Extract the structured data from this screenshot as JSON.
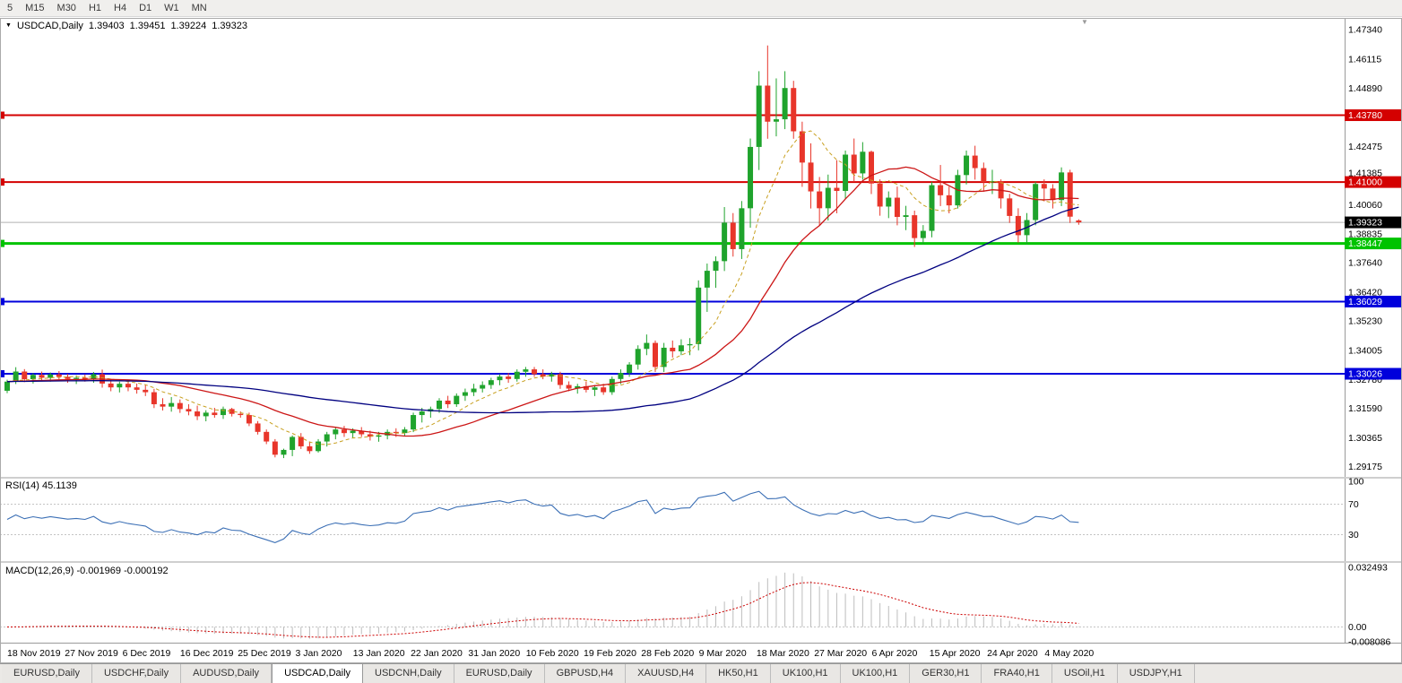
{
  "icons": {
    "chart_menu": "▼",
    "shift_marker": "▼"
  },
  "toolbar": {
    "timeframes": [
      "5",
      "M15",
      "M30",
      "H1",
      "H4",
      "D1",
      "W1",
      "MN"
    ]
  },
  "chart_header": {
    "symbol": "USDCAD,Daily",
    "open": "1.39403",
    "high": "1.39451",
    "low": "1.39224",
    "close": "1.39323"
  },
  "chart_data": {
    "type": "candlestick",
    "symbol": "USDCAD",
    "timeframe": "Daily",
    "price_axis": {
      "min": 1.2874,
      "max": 1.47825,
      "ticks": [
        "1.47340",
        "1.46115",
        "1.44890",
        "1.42475",
        "1.41385",
        "1.40060",
        "1.38835",
        "1.37640",
        "1.36420",
        "1.35230",
        "1.34005",
        "1.32780",
        "1.31590",
        "1.30365",
        "1.29175"
      ]
    },
    "current_price": {
      "value": 1.39323,
      "label": "1.39323",
      "badge_color": "#000000"
    },
    "levels": [
      {
        "price": 1.4378,
        "label": "1.43780",
        "color": "#d40000",
        "width": 2
      },
      {
        "price": 1.41,
        "label": "1.41000",
        "color": "#d40000",
        "width": 2
      },
      {
        "price": 1.38447,
        "label": "1.38447",
        "color": "#00c300",
        "width": 3
      },
      {
        "price": 1.36029,
        "label": "1.36029",
        "color": "#0000dc",
        "width": 2
      },
      {
        "price": 1.33026,
        "label": "1.33026",
        "color": "#0000dc",
        "width": 2
      }
    ],
    "colors": {
      "bull": "#1fa32c",
      "bear": "#e8352a",
      "ma_fast": "#c8a020",
      "ma_mid": "#cc1616",
      "ma_slow": "#000080",
      "rsi": "#3b6fb5",
      "macd_hist": "#bdbdbd",
      "macd_signal": "#cc0000",
      "bid_line": "#b0b0b0"
    },
    "moving_averages": [
      {
        "period": 8,
        "style": "dashed",
        "color_key": "ma_fast"
      },
      {
        "period": 20,
        "style": "solid",
        "color_key": "ma_mid"
      },
      {
        "period": 50,
        "style": "solid",
        "color_key": "ma_slow"
      }
    ],
    "candles_ohlc": [
      [
        1.3232,
        1.3278,
        1.3222,
        1.327
      ],
      [
        1.327,
        1.333,
        1.326,
        1.3312
      ],
      [
        1.3312,
        1.3322,
        1.3268,
        1.328
      ],
      [
        1.328,
        1.3305,
        1.3262,
        1.3298
      ],
      [
        1.3298,
        1.3312,
        1.3275,
        1.3286
      ],
      [
        1.3286,
        1.3308,
        1.327,
        1.33
      ],
      [
        1.33,
        1.3314,
        1.328,
        1.329
      ],
      [
        1.329,
        1.3302,
        1.3265,
        1.3281
      ],
      [
        1.3281,
        1.3296,
        1.326,
        1.3286
      ],
      [
        1.3286,
        1.33,
        1.327,
        1.3279
      ],
      [
        1.3279,
        1.331,
        1.3265,
        1.3301
      ],
      [
        1.3301,
        1.332,
        1.3245,
        1.3262
      ],
      [
        1.3262,
        1.3281,
        1.323,
        1.3246
      ],
      [
        1.3246,
        1.327,
        1.3225,
        1.3261
      ],
      [
        1.3261,
        1.3276,
        1.323,
        1.3246
      ],
      [
        1.3246,
        1.3262,
        1.322,
        1.3236
      ],
      [
        1.3236,
        1.3256,
        1.321,
        1.3226
      ],
      [
        1.3226,
        1.324,
        1.316,
        1.3176
      ],
      [
        1.3176,
        1.3201,
        1.315,
        1.3166
      ],
      [
        1.3166,
        1.3206,
        1.3145,
        1.3181
      ],
      [
        1.3181,
        1.3196,
        1.314,
        1.3156
      ],
      [
        1.3156,
        1.3176,
        1.313,
        1.3146
      ],
      [
        1.3146,
        1.317,
        1.311,
        1.3126
      ],
      [
        1.3126,
        1.3151,
        1.3105,
        1.3141
      ],
      [
        1.3141,
        1.3161,
        1.312,
        1.3131
      ],
      [
        1.3131,
        1.3166,
        1.3115,
        1.3156
      ],
      [
        1.3156,
        1.3161,
        1.3125,
        1.3136
      ],
      [
        1.3136,
        1.3146,
        1.312,
        1.3131
      ],
      [
        1.3131,
        1.3141,
        1.3085,
        1.3096
      ],
      [
        1.3096,
        1.3106,
        1.305,
        1.3061
      ],
      [
        1.3061,
        1.3071,
        1.301,
        1.3021
      ],
      [
        1.3021,
        1.3031,
        1.2955,
        1.2966
      ],
      [
        1.2966,
        1.2991,
        1.2952,
        1.2986
      ],
      [
        1.2986,
        1.3046,
        1.296,
        1.304
      ],
      [
        1.304,
        1.3056,
        1.299,
        1.3001
      ],
      [
        1.3001,
        1.3021,
        1.297,
        1.2981
      ],
      [
        1.2981,
        1.3031,
        1.2975,
        1.3021
      ],
      [
        1.3021,
        1.3061,
        1.3,
        1.3051
      ],
      [
        1.3051,
        1.3081,
        1.303,
        1.3071
      ],
      [
        1.3071,
        1.3086,
        1.304,
        1.3056
      ],
      [
        1.3056,
        1.3076,
        1.3035,
        1.3066
      ],
      [
        1.3066,
        1.3081,
        1.304,
        1.3051
      ],
      [
        1.3051,
        1.3066,
        1.3025,
        1.3041
      ],
      [
        1.3041,
        1.3061,
        1.302,
        1.3046
      ],
      [
        1.3046,
        1.3071,
        1.303,
        1.3061
      ],
      [
        1.3061,
        1.3076,
        1.304,
        1.3056
      ],
      [
        1.3056,
        1.3081,
        1.3045,
        1.3071
      ],
      [
        1.3071,
        1.3141,
        1.306,
        1.3131
      ],
      [
        1.3131,
        1.3161,
        1.31,
        1.3146
      ],
      [
        1.3146,
        1.3166,
        1.312,
        1.3156
      ],
      [
        1.3156,
        1.3201,
        1.314,
        1.3191
      ],
      [
        1.3191,
        1.3211,
        1.316,
        1.3176
      ],
      [
        1.3176,
        1.3221,
        1.3165,
        1.3211
      ],
      [
        1.3211,
        1.3241,
        1.319,
        1.3226
      ],
      [
        1.3226,
        1.3261,
        1.321,
        1.3241
      ],
      [
        1.3241,
        1.3271,
        1.3225,
        1.3256
      ],
      [
        1.3256,
        1.3286,
        1.324,
        1.3276
      ],
      [
        1.3276,
        1.3301,
        1.3255,
        1.3291
      ],
      [
        1.3291,
        1.3306,
        1.3265,
        1.3281
      ],
      [
        1.3281,
        1.3321,
        1.327,
        1.3311
      ],
      [
        1.3311,
        1.3331,
        1.329,
        1.3321
      ],
      [
        1.3321,
        1.3331,
        1.329,
        1.3301
      ],
      [
        1.3301,
        1.3321,
        1.328,
        1.3291
      ],
      [
        1.3291,
        1.3311,
        1.327,
        1.3301
      ],
      [
        1.3301,
        1.3311,
        1.324,
        1.3256
      ],
      [
        1.3256,
        1.3271,
        1.323,
        1.3241
      ],
      [
        1.3241,
        1.3261,
        1.322,
        1.3251
      ],
      [
        1.3251,
        1.3271,
        1.3225,
        1.3236
      ],
      [
        1.3236,
        1.3256,
        1.321,
        1.3246
      ],
      [
        1.3246,
        1.3261,
        1.3215,
        1.3226
      ],
      [
        1.3226,
        1.3291,
        1.3215,
        1.3281
      ],
      [
        1.3281,
        1.3321,
        1.326,
        1.3306
      ],
      [
        1.3306,
        1.3351,
        1.329,
        1.3341
      ],
      [
        1.3341,
        1.3421,
        1.332,
        1.3406
      ],
      [
        1.3406,
        1.3466,
        1.338,
        1.3431
      ],
      [
        1.3431,
        1.3441,
        1.331,
        1.3331
      ],
      [
        1.3331,
        1.3431,
        1.331,
        1.3411
      ],
      [
        1.3411,
        1.3441,
        1.337,
        1.3396
      ],
      [
        1.3396,
        1.3446,
        1.338,
        1.3421
      ],
      [
        1.3421,
        1.3451,
        1.338,
        1.3426
      ],
      [
        1.3426,
        1.3691,
        1.34,
        1.3661
      ],
      [
        1.3661,
        1.3761,
        1.356,
        1.3731
      ],
      [
        1.3731,
        1.3791,
        1.366,
        1.3771
      ],
      [
        1.3771,
        1.3996,
        1.373,
        1.3931
      ],
      [
        1.3931,
        1.3971,
        1.379,
        1.3821
      ],
      [
        1.3821,
        1.4021,
        1.378,
        1.3991
      ],
      [
        1.3991,
        1.4281,
        1.391,
        1.4246
      ],
      [
        1.4246,
        1.4561,
        1.415,
        1.4501
      ],
      [
        1.4501,
        1.4668,
        1.428,
        1.4351
      ],
      [
        1.4351,
        1.4531,
        1.429,
        1.4361
      ],
      [
        1.4361,
        1.4561,
        1.432,
        1.4491
      ],
      [
        1.4491,
        1.4521,
        1.428,
        1.4311
      ],
      [
        1.4311,
        1.4351,
        1.408,
        1.4181
      ],
      [
        1.4181,
        1.4261,
        1.399,
        1.4061
      ],
      [
        1.4061,
        1.4121,
        1.392,
        1.3991
      ],
      [
        1.3991,
        1.4131,
        1.394,
        1.4076
      ],
      [
        1.4076,
        1.4191,
        1.397,
        1.4063
      ],
      [
        1.4063,
        1.4231,
        1.403,
        1.4214
      ],
      [
        1.4214,
        1.4281,
        1.41,
        1.4136
      ],
      [
        1.4136,
        1.4266,
        1.411,
        1.4226
      ],
      [
        1.4226,
        1.4231,
        1.405,
        1.4094
      ],
      [
        1.4094,
        1.4111,
        1.396,
        1.3998
      ],
      [
        1.3998,
        1.4061,
        1.395,
        1.4035
      ],
      [
        1.4035,
        1.4081,
        1.392,
        1.3955
      ],
      [
        1.3955,
        1.4001,
        1.39,
        1.3962
      ],
      [
        1.3962,
        1.3981,
        1.383,
        1.3867
      ],
      [
        1.3867,
        1.3921,
        1.384,
        1.3897
      ],
      [
        1.3897,
        1.4101,
        1.387,
        1.4087
      ],
      [
        1.4087,
        1.4171,
        1.4,
        1.4045
      ],
      [
        1.4045,
        1.4081,
        1.397,
        1.4003
      ],
      [
        1.4003,
        1.4151,
        1.399,
        1.4129
      ],
      [
        1.4129,
        1.4231,
        1.409,
        1.421
      ],
      [
        1.421,
        1.4251,
        1.411,
        1.4158
      ],
      [
        1.4158,
        1.4181,
        1.406,
        1.41
      ],
      [
        1.41,
        1.4151,
        1.405,
        1.4103
      ],
      [
        1.4103,
        1.4111,
        1.399,
        1.4032
      ],
      [
        1.4032,
        1.4051,
        1.393,
        1.3959
      ],
      [
        1.3959,
        1.3991,
        1.3848,
        1.3879
      ],
      [
        1.3879,
        1.3971,
        1.384,
        1.3942
      ],
      [
        1.3942,
        1.4101,
        1.392,
        1.4092
      ],
      [
        1.4092,
        1.4111,
        1.402,
        1.4073
      ],
      [
        1.4073,
        1.4091,
        1.399,
        1.4025
      ],
      [
        1.4025,
        1.4161,
        1.4,
        1.414
      ],
      [
        1.414,
        1.4151,
        1.393,
        1.3956
      ],
      [
        1.39403,
        1.39451,
        1.39224,
        1.39323
      ]
    ],
    "date_axis": [
      "18 Nov 2019",
      "27 Nov 2019",
      "6 Dec 2019",
      "16 Dec 2019",
      "25 Dec 2019",
      "3 Jan 2020",
      "13 Jan 2020",
      "22 Jan 2020",
      "31 Jan 2020",
      "10 Feb 2020",
      "19 Feb 2020",
      "28 Feb 2020",
      "9 Mar 2020",
      "18 Mar 2020",
      "27 Mar 2020",
      "6 Apr 2020",
      "15 Apr 2020",
      "24 Apr 2020",
      "4 May 2020"
    ],
    "rsi": {
      "label": "RSI(14) 45.1139",
      "period": 14,
      "value": "45.1139",
      "ticks": [
        "100",
        "70",
        "30"
      ],
      "levels": [
        70,
        30
      ]
    },
    "macd": {
      "label": "MACD(12,26,9) -0.001969 -0.000192",
      "params": "12,26,9",
      "main_value": "-0.001969",
      "signal_value": "-0.000192",
      "ticks": [
        "0.032493",
        "0.00",
        "-0.008086"
      ]
    }
  },
  "tabs": {
    "items": [
      "EURUSD,Daily",
      "USDCHF,Daily",
      "AUDUSD,Daily",
      "USDCAD,Daily",
      "USDCNH,Daily",
      "EURUSD,Daily",
      "GBPUSD,H4",
      "XAUUSD,H4",
      "HK50,H1",
      "UK100,H1",
      "UK100,H1",
      "GER30,H1",
      "FRA40,H1",
      "USOil,H1",
      "USDJPY,H1"
    ],
    "active_index": 3
  }
}
